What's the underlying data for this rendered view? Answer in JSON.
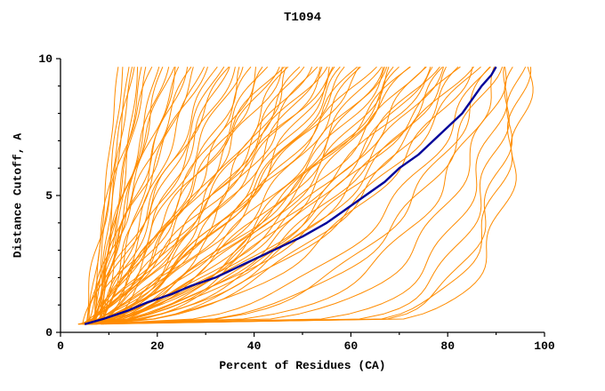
{
  "chart_data": {
    "type": "line",
    "title": "T1094",
    "xlabel": "Percent of Residues (CA)",
    "ylabel": "Distance Cutoff, A",
    "xlim": [
      0,
      100
    ],
    "ylim": [
      0,
      10
    ],
    "grid": false,
    "legend": "none",
    "x_major_ticks": [
      0,
      20,
      40,
      60,
      80,
      100
    ],
    "x_minor_ticks": [
      10,
      30,
      50,
      70,
      90
    ],
    "y_major_ticks": [
      0,
      5,
      10
    ],
    "y_minor_ticks": [
      1,
      2,
      3,
      4,
      6,
      7,
      8,
      9
    ],
    "colors": {
      "ensemble": "#ff8c00",
      "highlight": "#000099",
      "axis": "#000000",
      "background": "#ffffff"
    },
    "highlight_series": {
      "name": "best-model-curve",
      "color": "#000099",
      "points": [
        [
          5,
          0.3
        ],
        [
          9,
          0.5
        ],
        [
          14,
          0.8
        ],
        [
          18,
          1.1
        ],
        [
          23,
          1.4
        ],
        [
          27,
          1.7
        ],
        [
          32,
          2.0
        ],
        [
          38,
          2.5
        ],
        [
          44,
          3.0
        ],
        [
          50,
          3.5
        ],
        [
          55,
          4.0
        ],
        [
          59,
          4.5
        ],
        [
          63,
          5.0
        ],
        [
          67,
          5.5
        ],
        [
          70,
          6.0
        ],
        [
          74,
          6.5
        ],
        [
          77,
          7.0
        ],
        [
          80,
          7.5
        ],
        [
          83,
          8.0
        ],
        [
          85,
          8.5
        ],
        [
          87,
          9.0
        ],
        [
          89,
          9.4
        ],
        [
          90,
          9.7
        ]
      ]
    },
    "ensemble_series": {
      "name": "prediction-curves",
      "color": "#ff8c00",
      "count": 84,
      "y_range": [
        0.3,
        9.7
      ],
      "curve_format": [
        "start_x_at_bottom",
        "end_x_at_top",
        "shape_power"
      ],
      "curves": [
        [
          7,
          12,
          1.2
        ],
        [
          8,
          14,
          1.0
        ],
        [
          6,
          15,
          1.3
        ],
        [
          9,
          16,
          0.9
        ],
        [
          7,
          18,
          1.1
        ],
        [
          5,
          19,
          1.4
        ],
        [
          8,
          20,
          1.0
        ],
        [
          6,
          22,
          1.2
        ],
        [
          9,
          24,
          0.95
        ],
        [
          7,
          25,
          1.3
        ],
        [
          5,
          27,
          1.1
        ],
        [
          8,
          29,
          1.0
        ],
        [
          6,
          30,
          1.25
        ],
        [
          7,
          13,
          1.05
        ],
        [
          8,
          17,
          1.15
        ],
        [
          6,
          21,
          0.85
        ],
        [
          7,
          23,
          1.35
        ],
        [
          5,
          26,
          1.0
        ],
        [
          9,
          28,
          1.2
        ],
        [
          8,
          15,
          1.4
        ],
        [
          5,
          32,
          0.9
        ],
        [
          6,
          34,
          0.8
        ],
        [
          7,
          36,
          1.0
        ],
        [
          5,
          38,
          0.7
        ],
        [
          8,
          40,
          0.95
        ],
        [
          6,
          42,
          0.85
        ],
        [
          5,
          44,
          0.75
        ],
        [
          7,
          46,
          0.9
        ],
        [
          6,
          48,
          0.65
        ],
        [
          5,
          50,
          0.8
        ],
        [
          8,
          52,
          0.7
        ],
        [
          6,
          54,
          0.9
        ],
        [
          5,
          56,
          0.6
        ],
        [
          7,
          58,
          0.75
        ],
        [
          6,
          35,
          1.1
        ],
        [
          5,
          45,
          1.0
        ],
        [
          7,
          51,
          0.85
        ],
        [
          6,
          57,
          0.95
        ],
        [
          5,
          60,
          0.7
        ],
        [
          6,
          62,
          0.6
        ],
        [
          5,
          64,
          0.75
        ],
        [
          7,
          66,
          0.55
        ],
        [
          6,
          68,
          0.65
        ],
        [
          5,
          70,
          0.5
        ],
        [
          6,
          72,
          0.7
        ],
        [
          5,
          74,
          0.6
        ],
        [
          7,
          76,
          0.55
        ],
        [
          6,
          78,
          0.65
        ],
        [
          5,
          80,
          0.5
        ],
        [
          6,
          82,
          0.6
        ],
        [
          5,
          84,
          0.55
        ],
        [
          7,
          85,
          0.45
        ],
        [
          6,
          63,
          0.8
        ],
        [
          5,
          73,
          0.7
        ],
        [
          5,
          88,
          0.35
        ],
        [
          6,
          90,
          0.3
        ],
        [
          5,
          92,
          0.2
        ],
        [
          6,
          93,
          0.15
        ],
        [
          5,
          94,
          0.12
        ],
        [
          7,
          95,
          0.1
        ],
        [
          6,
          96,
          0.1
        ],
        [
          5,
          97,
          0.08
        ],
        [
          6,
          91,
          0.25
        ],
        [
          5,
          89,
          0.3
        ],
        [
          8,
          33,
          1.0
        ],
        [
          7,
          37,
          0.9
        ],
        [
          6,
          41,
          0.75
        ],
        [
          5,
          43,
          0.85
        ],
        [
          8,
          47,
          0.8
        ],
        [
          6,
          49,
          0.7
        ],
        [
          5,
          53,
          0.65
        ],
        [
          7,
          55,
          0.8
        ],
        [
          6,
          59,
          0.7
        ],
        [
          5,
          61,
          0.65
        ],
        [
          8,
          65,
          0.6
        ],
        [
          6,
          67,
          0.7
        ],
        [
          5,
          69,
          0.55
        ],
        [
          7,
          71,
          0.65
        ],
        [
          6,
          75,
          0.5
        ],
        [
          5,
          77,
          0.6
        ],
        [
          8,
          79,
          0.55
        ],
        [
          6,
          81,
          0.5
        ],
        [
          5,
          83,
          0.45
        ],
        [
          7,
          86,
          0.5
        ]
      ]
    }
  }
}
